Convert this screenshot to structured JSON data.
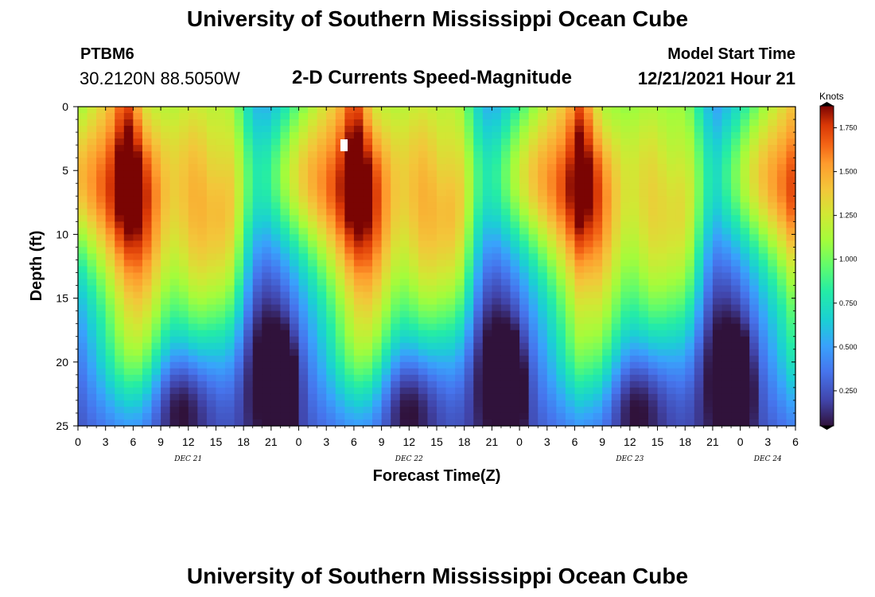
{
  "header": {
    "title": "University of Southern Mississippi Ocean Cube",
    "station_id": "PTBM6",
    "station_coords": "30.2120N  88.5050W",
    "chart_title": "2-D Currents Speed-Magnitude",
    "model_label": "Model Start Time",
    "model_time": "12/21/2021 Hour 21"
  },
  "footer": {
    "title": "University of Southern Mississippi Ocean Cube"
  },
  "chart_data": {
    "type": "heatmap",
    "title": "2-D Currents Speed-Magnitude",
    "xlabel": "Forecast Time(Z)",
    "ylabel": "Depth (ft)",
    "x_range_hours": [
      0,
      78
    ],
    "x_tick_labels": [
      "0",
      "3",
      "6",
      "9",
      "12",
      "15",
      "18",
      "21",
      "0",
      "3",
      "6",
      "9",
      "12",
      "15",
      "18",
      "21",
      "0",
      "3",
      "6",
      "9",
      "12",
      "15",
      "18",
      "21",
      "0",
      "3",
      "6"
    ],
    "day_labels": [
      {
        "label": "DEC 21",
        "hour": 12
      },
      {
        "label": "DEC 22",
        "hour": 36
      },
      {
        "label": "DEC 23",
        "hour": 60
      },
      {
        "label": "DEC 24",
        "hour": 75
      }
    ],
    "y_range": [
      0,
      25
    ],
    "y_ticks": [
      0,
      5,
      10,
      15,
      20,
      25
    ],
    "y_inverted": true,
    "colorbar": {
      "label": "Knots",
      "range": [
        0.05,
        1.875
      ],
      "ticks": [
        0.25,
        0.5,
        0.75,
        1.0,
        1.25,
        1.5,
        1.75
      ],
      "tick_labels": [
        "0.250",
        "0.500",
        "0.750",
        "1.000",
        "1.250",
        "1.500",
        "1.750"
      ],
      "colormap": "turbo"
    },
    "features": [
      {
        "t": 2.5,
        "d": 4,
        "st": 2.5,
        "sd": 3.5,
        "amp": -0.3
      },
      {
        "t": 1.5,
        "d": 12,
        "st": 4,
        "sd": 8,
        "amp": -0.05
      },
      {
        "t": 13,
        "d": 6,
        "st": 2.0,
        "sd": 9,
        "amp": 0.78
      },
      {
        "t": 13.5,
        "d": 14,
        "st": 1.7,
        "sd": 5,
        "amp": 0.22
      },
      {
        "t": 22.5,
        "d": 22,
        "st": 1.0,
        "sd": 3,
        "amp": -0.4
      },
      {
        "t": 20,
        "d": 20,
        "st": 3,
        "sd": 6,
        "amp": -0.12
      },
      {
        "t": 5,
        "d": 4,
        "st": 4.5,
        "sd": 10,
        "amp": 1.28
      },
      {
        "t": 7,
        "d": 13,
        "st": 2.3,
        "sd": 7,
        "amp": 0.48
      },
      {
        "t": 5.5,
        "d": 20,
        "st": 2.5,
        "sd": 3,
        "amp": 0.22
      },
      {
        "t": 10.5,
        "d": 23,
        "st": 2.0,
        "sd": 3,
        "amp": -0.3
      },
      {
        "t": 15.5,
        "d": 4,
        "st": 1.2,
        "sd": 3,
        "amp": -0.15
      },
      {
        "t": 0,
        "d": 6,
        "st": 4.5,
        "sd": 3.5,
        "amp": 0.58
      },
      {
        "t": 0,
        "d": 2,
        "st": 2.5,
        "sd": 3,
        "amp": 0.15
      },
      {
        "t": 6.5,
        "d": 0,
        "st": 1.5,
        "sd": 3,
        "amp": -0.25
      },
      {
        "t": 16.5,
        "d": 5,
        "st": 1.6,
        "sd": 9,
        "amp": 0.8
      },
      {
        "t": 16.8,
        "d": 14,
        "st": 1.4,
        "sd": 5,
        "amp": 0.2
      },
      {
        "t": 20.5,
        "d": 20,
        "st": 2.0,
        "sd": 4,
        "amp": -0.2
      },
      {
        "t": 13,
        "d": 23,
        "st": 2.0,
        "sd": 3,
        "amp": -0.15
      },
      {
        "t": 5.5,
        "d": 0,
        "st": 1.0,
        "sd": 6,
        "amp": 0.4
      }
    ]
  }
}
